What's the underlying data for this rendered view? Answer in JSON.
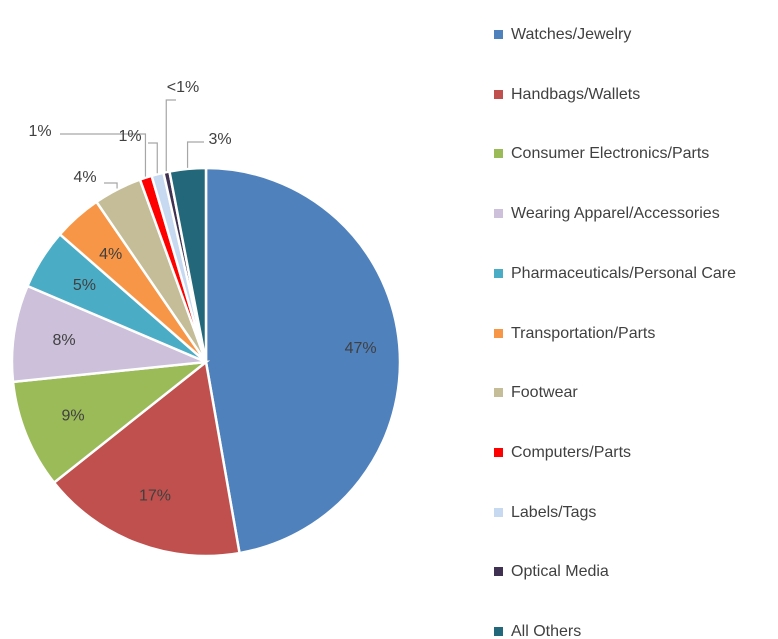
{
  "chart_data": {
    "type": "pie",
    "categories": [
      "Watches/Jewelry",
      "Handbags/Wallets",
      "Consumer Electronics/Parts",
      "Wearing Apparel/Accessories",
      "Pharmaceuticals/Personal Care",
      "Transportation/Parts",
      "Footwear",
      "Computers/Parts",
      "Labels/Tags",
      "Optical Media",
      "All Others"
    ],
    "values": [
      47,
      17,
      9,
      8,
      5,
      4,
      4,
      1,
      1,
      0.5,
      3
    ],
    "value_labels": [
      "47%",
      "17%",
      "9%",
      "8%",
      "5%",
      "4%",
      "4%",
      "1%",
      "1%",
      "<1%",
      "3%"
    ],
    "colors": [
      "#4f81bd",
      "#c0504d",
      "#9bbb59",
      "#ccc0da",
      "#4bacc6",
      "#f79646",
      "#c4bd97",
      "#ff0000",
      "#c6d9f1",
      "#3f3151",
      "#23687a"
    ],
    "legend": "right"
  }
}
